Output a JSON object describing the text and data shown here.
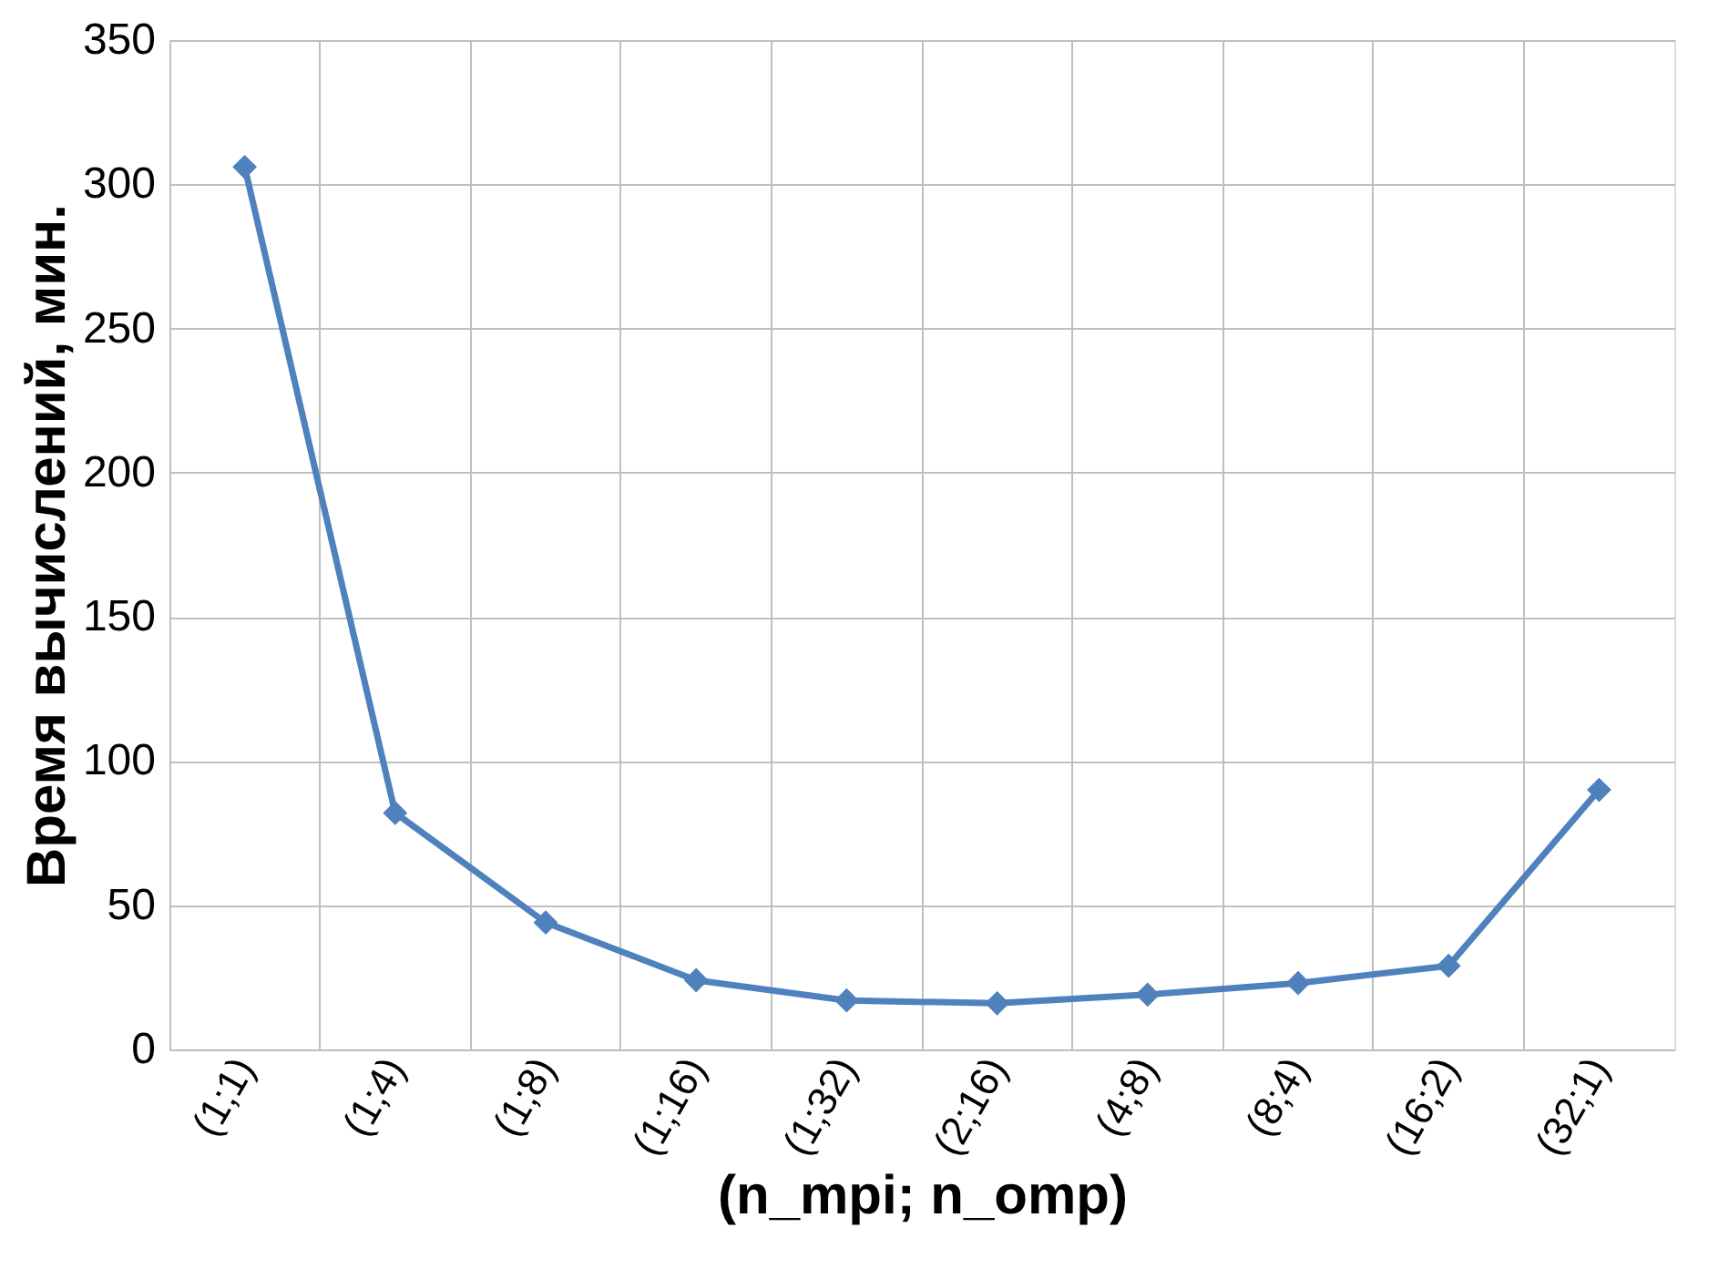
{
  "chart_data": {
    "type": "line",
    "xlabel": "(n_mpi; n_omp)",
    "ylabel": "Время вычислений, мин.",
    "categories": [
      "(1;1)",
      "(1;4)",
      "(1;8)",
      "(1;16)",
      "(1;32)",
      "(2;16)",
      "(4;8)",
      "(8;4)",
      "(16;2)",
      "(32;1)"
    ],
    "series": [
      {
        "color": "#4f81bd",
        "values": [
          306,
          82,
          44,
          24,
          17,
          16,
          19,
          23,
          29,
          90
        ]
      }
    ],
    "ylim": [
      0,
      350
    ],
    "yticks": [
      0,
      50,
      100,
      150,
      200,
      250,
      300,
      350
    ],
    "grid": true,
    "marker": "diamond",
    "line_style": "solid"
  }
}
